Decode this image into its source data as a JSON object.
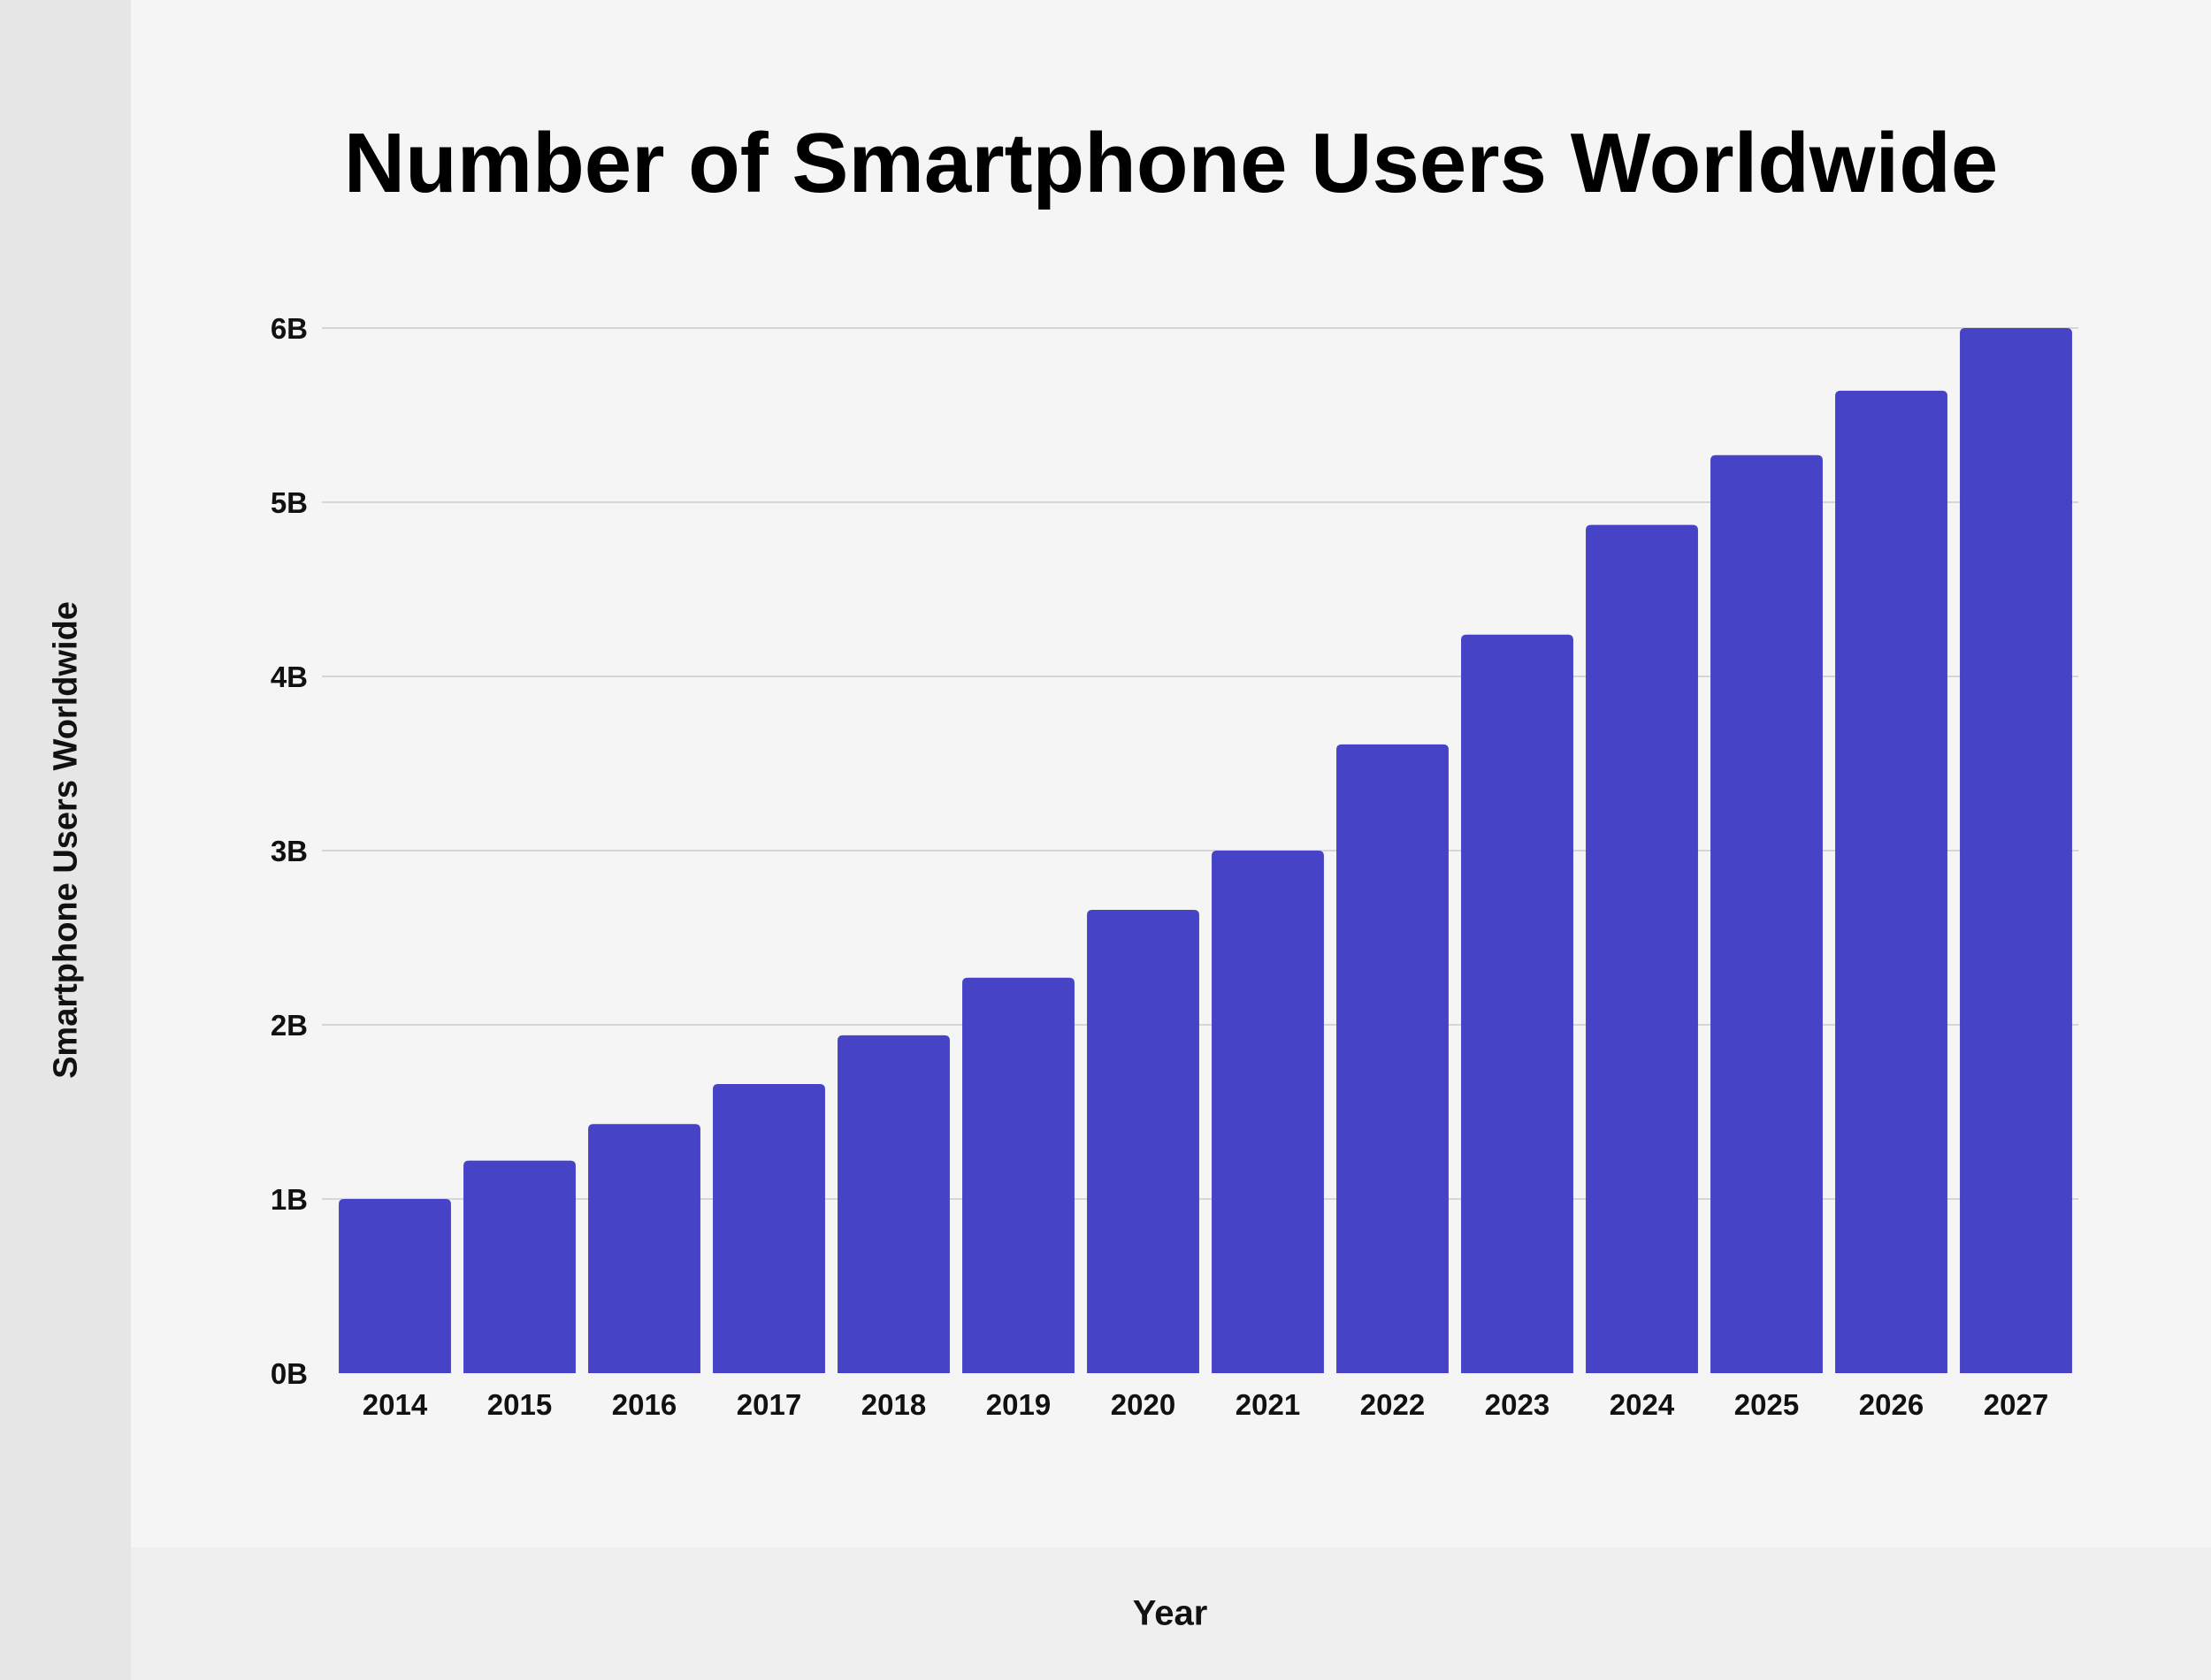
{
  "chart_data": {
    "type": "bar",
    "title": "Number of Smartphone Users Worldwide",
    "xlabel": "Year",
    "ylabel": "Smartphone Users Worldwide",
    "categories": [
      "2014",
      "2015",
      "2016",
      "2017",
      "2018",
      "2019",
      "2020",
      "2021",
      "2022",
      "2023",
      "2024",
      "2025",
      "2026",
      "2027"
    ],
    "values": [
      1.0,
      1.22,
      1.43,
      1.66,
      1.94,
      2.27,
      2.66,
      3.0,
      3.61,
      4.24,
      4.87,
      5.27,
      5.64,
      6.0
    ],
    "unit": "B",
    "ylim": [
      0,
      6
    ],
    "yticks": [
      "0B",
      "1B",
      "2B",
      "3B",
      "4B",
      "5B",
      "6B"
    ],
    "grid": true,
    "bar_color": "#4643c6"
  }
}
